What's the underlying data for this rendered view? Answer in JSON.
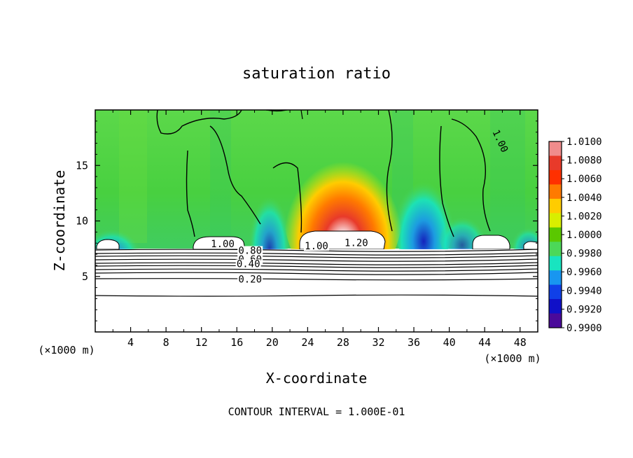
{
  "chart_data": {
    "type": "heatmap",
    "title": "saturation ratio",
    "xlabel": "X-coordinate",
    "ylabel": "Z-coordinate",
    "x_unit": "(×1000 m)",
    "x_unit_right": "(×1000 m)",
    "footer": "CONTOUR INTERVAL = 1.000E-01",
    "xlim": [
      0,
      50
    ],
    "ylim": [
      0,
      20
    ],
    "x_ticks": [
      "4",
      "8",
      "12",
      "16",
      "20",
      "24",
      "28",
      "32",
      "36",
      "40",
      "44",
      "48"
    ],
    "y_ticks": [
      "5",
      "10",
      "15"
    ],
    "grid": false,
    "colorbar": {
      "labels": [
        "1.0100",
        "1.0080",
        "1.0060",
        "1.0040",
        "1.0020",
        "1.0000",
        "0.9980",
        "0.9960",
        "0.9940",
        "0.9920",
        "0.9900"
      ],
      "colors": [
        "#f08c8c",
        "#e83a2a",
        "#ff3000",
        "#ff7a00",
        "#ffcc00",
        "#d8ee00",
        "#5ac800",
        "#4cd858",
        "#18e4c0",
        "#1896f0",
        "#1040e8",
        "#1010c8",
        "#4a0a9a"
      ]
    },
    "contour_labels": [
      {
        "text": "1.00",
        "x": 45.5,
        "y": 17.1
      },
      {
        "text": "1.00",
        "x": 14.4,
        "y": 7.7
      },
      {
        "text": "0.80",
        "x": 17.5,
        "y": 7.1
      },
      {
        "text": "0.60",
        "x": 17.5,
        "y": 6.3
      },
      {
        "text": "0.40",
        "x": 17.3,
        "y": 5.9
      },
      {
        "text": "0.20",
        "x": 17.5,
        "y": 4.5
      },
      {
        "text": "1.00",
        "x": 25.0,
        "y": 7.5
      },
      {
        "text": "1.20",
        "x": 29.5,
        "y": 7.8
      }
    ],
    "contour_levels_below_cloudbase": [
      7.6,
      7.3,
      7.1,
      6.8,
      6.3,
      6.1,
      5.9,
      5.4,
      4.8,
      3.3
    ]
  }
}
